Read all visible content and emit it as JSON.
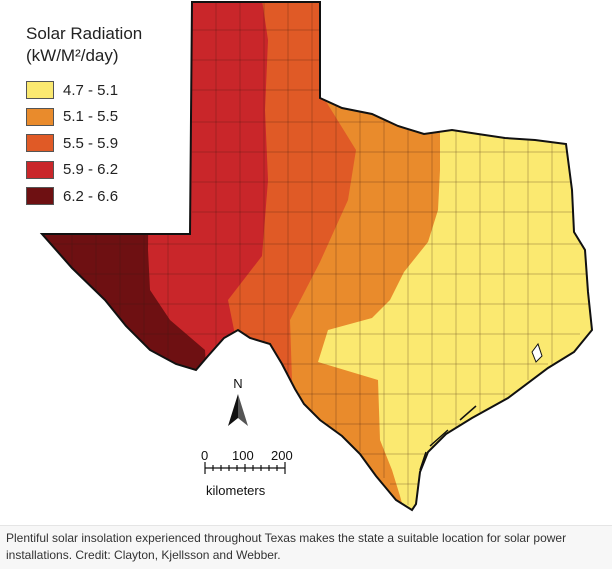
{
  "legend": {
    "title": "Solar Radiation",
    "unit": "(kW/M²/day)",
    "items": [
      {
        "label": "4.7 - 5.1",
        "color": "#fbe970"
      },
      {
        "label": "5.1 - 5.5",
        "color": "#e98b2c"
      },
      {
        "label": "5.5 - 5.9",
        "color": "#e05a26"
      },
      {
        "label": "5.9 - 6.2",
        "color": "#c9262a"
      },
      {
        "label": "6.2 - 6.6",
        "color": "#6e1012"
      }
    ]
  },
  "north_arrow": {
    "label": "N"
  },
  "scale_bar": {
    "ticks": [
      "0",
      "100",
      "200"
    ],
    "unit": "kilometers"
  },
  "caption": "Plentiful solar insolation experienced throughout Texas makes the state a suitable location for solar power installations. Credit: Clayton, Kjellsson and Webber."
}
